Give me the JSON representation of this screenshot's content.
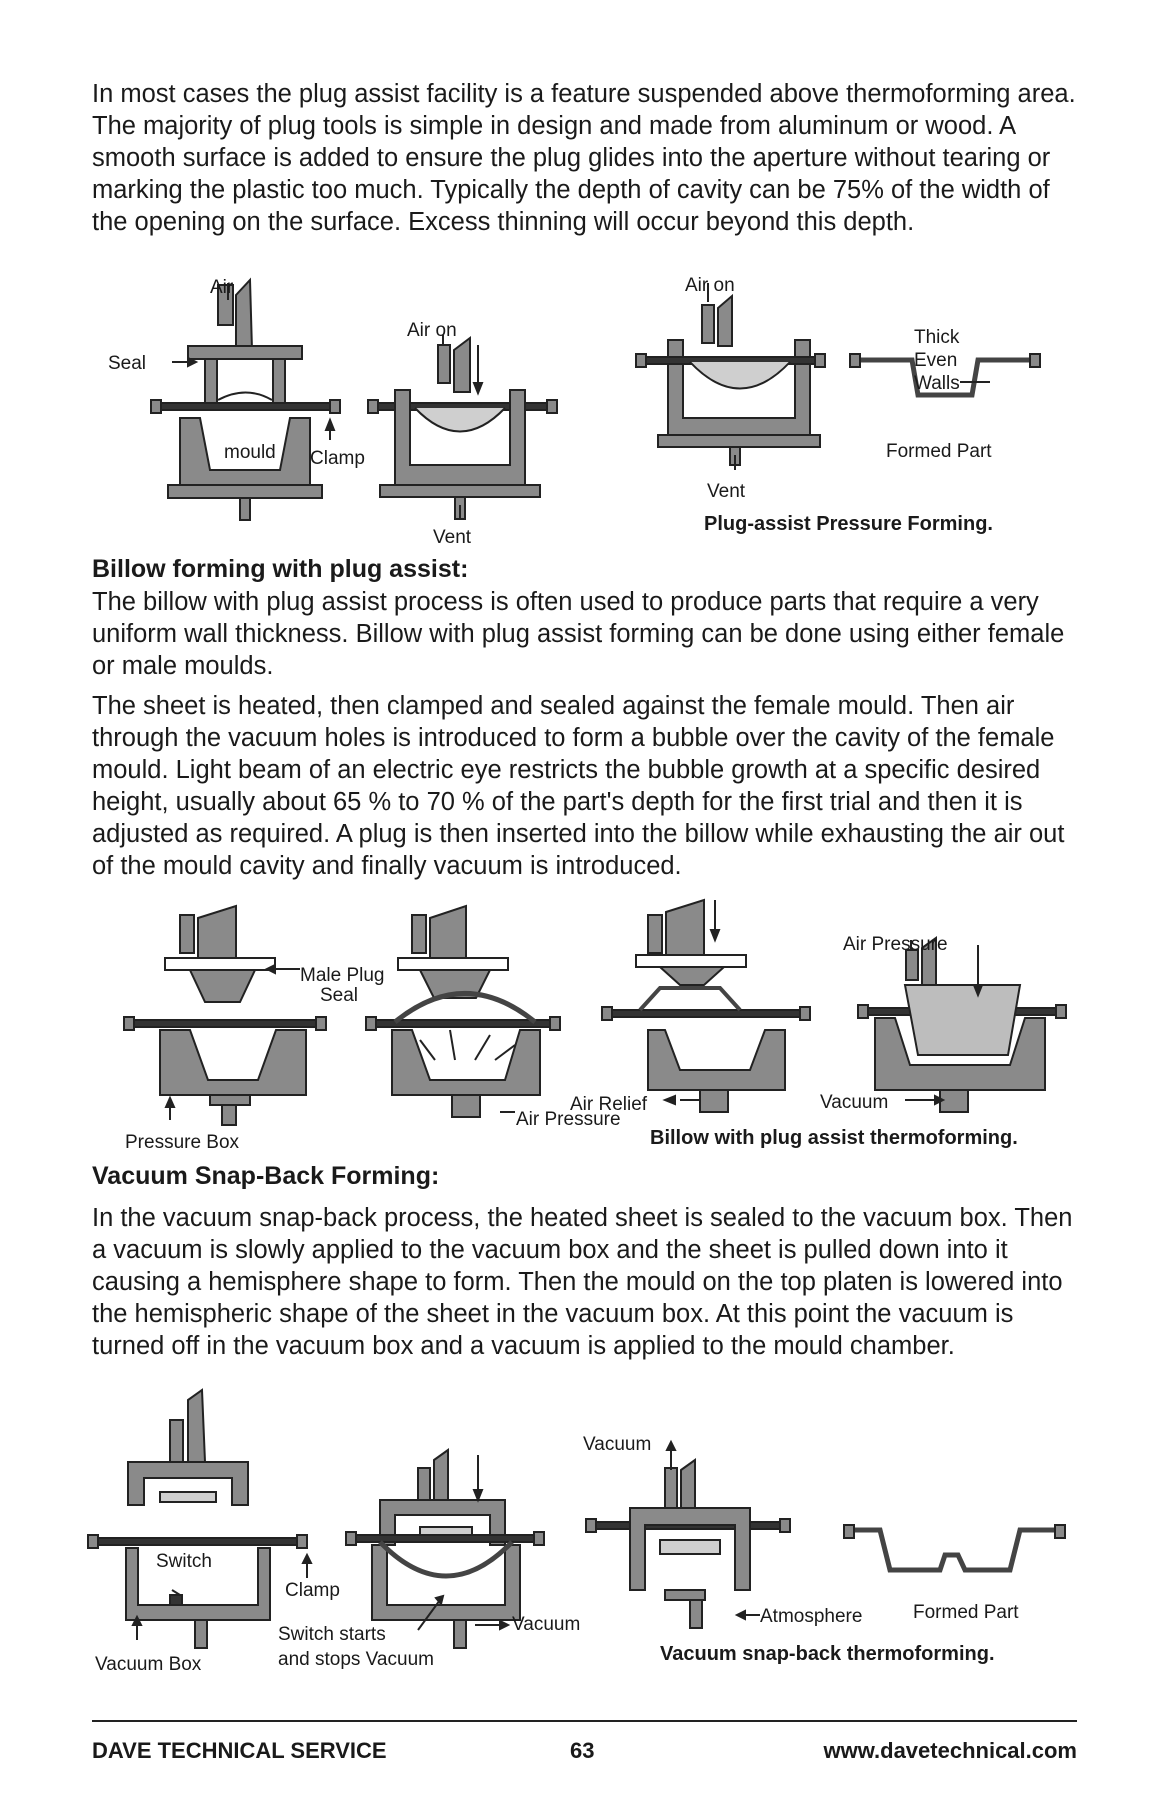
{
  "para1": "In most cases the plug assist facility is a feature suspended above thermoforming area. The majority of plug tools is simple in design and made from aluminum or wood. A smooth surface is added to ensure the plug glides into the aperture without tearing or marking the plastic too much. Typically the depth of cavity can be 75% of the width of the opening on the surface. Excess thinning will occur beyond this depth.",
  "fig1": {
    "air": "Air",
    "seal": "Seal",
    "mould": "mould",
    "clamp": "Clamp",
    "air_on_1": "Air on",
    "vent_1": "Vent",
    "air_on_2": "Air on",
    "vent_2": "Vent",
    "thick": "Thick",
    "even": "Even",
    "walls": "Walls",
    "formed_part": "Formed Part",
    "caption": "Plug-assist Pressure Forming."
  },
  "heading_billow": "Billow forming with plug assist:",
  "para2": "The billow with plug assist process is often used to produce parts that require a very uniform wall thickness. Billow with plug assist forming can be done using either female or male moulds.",
  "para3": "The sheet is heated, then clamped and sealed against the female mould. Then air through the vacuum holes is introduced to form a bubble over the cavity of the female mould.  Light beam of an electric eye restricts the bubble growth at a specific desired height, usually about 65 % to 70 % of the part's depth for the first trial and then it is adjusted as required. A plug is then inserted into the billow while exhausting the air out of the mould cavity and finally vacuum is introduced.",
  "fig2": {
    "male_plug": "Male Plug",
    "seal": "Seal",
    "pressure_box": "Pressure Box",
    "air_pressure_1": "Air Pressure",
    "air_relief": "Air Relief",
    "air_pressure_2": "Air Pressure",
    "vacuum": "Vacuum",
    "caption": "Billow with plug assist thermoforming."
  },
  "heading_snap": "Vacuum Snap-Back Forming:",
  "para4": "In the vacuum snap-back process, the heated sheet is sealed to the vacuum box. Then a vacuum is slowly applied to the vacuum box and the sheet is pulled down into it causing a hemisphere shape to form. Then the mould on the top platen is lowered into the hemispheric shape of the sheet in the vacuum box. At this point the vacuum is turned off in the vacuum box and a vacuum is applied to the mould chamber.",
  "fig3": {
    "switch": "Switch",
    "clamp": "Clamp",
    "vacuum_box": "Vacuum Box",
    "switch_starts": "Switch starts",
    "and_stops": "and stops Vacuum",
    "vacuum_1": "Vacuum",
    "vacuum_2": "Vacuum",
    "atmosphere": "Atmosphere",
    "formed_part": "Formed Part",
    "caption": "Vacuum snap-back thermoforming."
  },
  "footer": {
    "left": "DAVE TECHNICAL SERVICE",
    "page": "63",
    "right": "www.davetechnical.com"
  }
}
